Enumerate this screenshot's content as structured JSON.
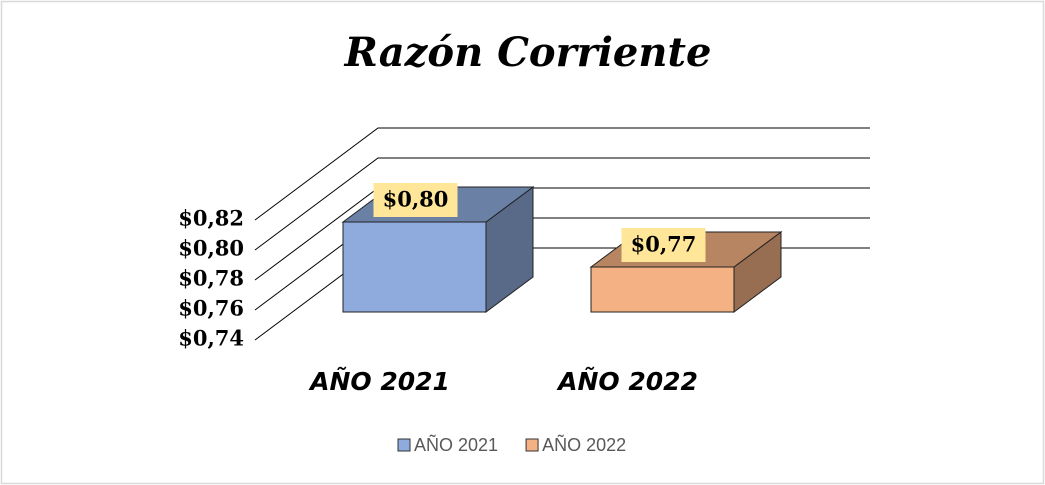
{
  "chart_data": {
    "type": "bar3d",
    "title": "Razón Corriente",
    "categories": [
      "AÑO 2021",
      "AÑO 2022"
    ],
    "series": [
      {
        "name": "AÑO 2021",
        "color": "#8faadc",
        "values": [
          0.8,
          null
        ],
        "value_labels": [
          "$0,80",
          null
        ]
      },
      {
        "name": "AÑO 2022",
        "color": "#f4b183",
        "values": [
          null,
          0.77
        ],
        "value_labels": [
          null,
          "$0,77"
        ]
      }
    ],
    "ylim": [
      0.74,
      0.82
    ],
    "yticks": [
      {
        "value": 0.74,
        "label": "$0,74"
      },
      {
        "value": 0.76,
        "label": "$0,76"
      },
      {
        "value": 0.78,
        "label": "$0,78"
      },
      {
        "value": 0.8,
        "label": "$0,80"
      },
      {
        "value": 0.82,
        "label": "$0,82"
      }
    ],
    "grid": true,
    "legend": "bottom"
  }
}
